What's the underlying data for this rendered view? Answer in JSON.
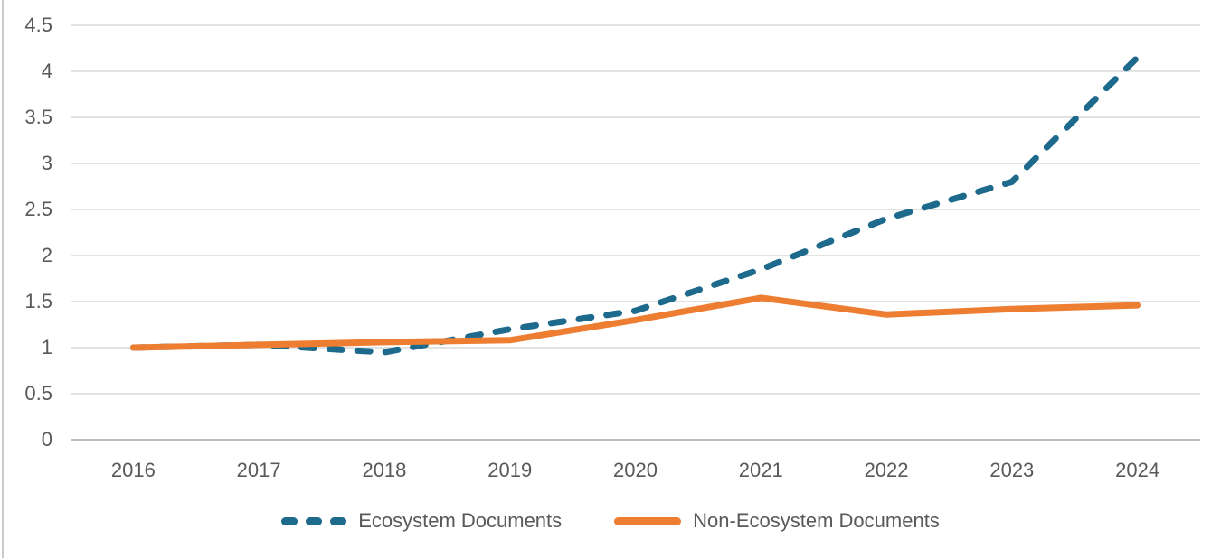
{
  "chart_data": {
    "type": "line",
    "title": "",
    "xlabel": "",
    "ylabel": "",
    "categories": [
      "2016",
      "2017",
      "2018",
      "2019",
      "2020",
      "2021",
      "2022",
      "2023",
      "2024"
    ],
    "series": [
      {
        "name": "Ecosystem Documents",
        "color": "#1e6a8c",
        "line_style": "dashed",
        "values": [
          1.0,
          1.03,
          0.95,
          1.2,
          1.4,
          1.85,
          2.4,
          2.8,
          4.15
        ]
      },
      {
        "name": "Non-Ecosystem Documents",
        "color": "#ed7d31",
        "line_style": "solid",
        "values": [
          1.0,
          1.03,
          1.06,
          1.08,
          1.3,
          1.54,
          1.36,
          1.42,
          1.46
        ]
      }
    ],
    "ylim": [
      0,
      4.5
    ],
    "y_ticks": [
      "0",
      "0.5",
      "1",
      "1.5",
      "2",
      "2.5",
      "3",
      "3.5",
      "4",
      "4.5"
    ],
    "grid": "horizontal-only",
    "legend_position": "bottom"
  },
  "legend": {
    "items": [
      {
        "label": "Ecosystem Documents"
      },
      {
        "label": "Non-Ecosystem Documents"
      }
    ]
  },
  "style": {
    "tick_label_color": "#595959",
    "gridline_color": "#d9d9d9",
    "axis_line_color": "#bfbfbf",
    "edge_line_color": "#cbcbcb",
    "line_width": 7
  }
}
